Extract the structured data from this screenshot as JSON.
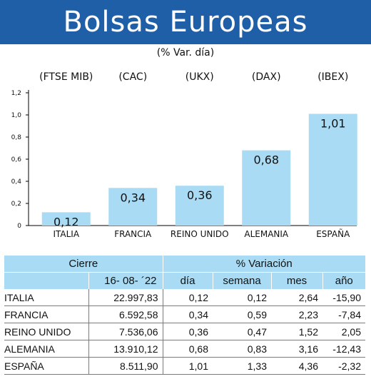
{
  "header": {
    "title": "Bolsas Europeas"
  },
  "subtitle": "(% Var. día)",
  "chart_data": {
    "type": "bar",
    "index_labels": [
      "(FTSE MIB)",
      "(CAC)",
      "(UKX)",
      "(DAX)",
      "(IBEX)"
    ],
    "categories": [
      "ITALIA",
      "FRANCIA",
      "REINO UNIDO",
      "ALEMANIA",
      "ESPAÑA"
    ],
    "values": [
      0.12,
      0.34,
      0.36,
      0.68,
      1.01
    ],
    "value_labels": [
      "0,12",
      "0,34",
      "0,36",
      "0,68",
      "1,01"
    ],
    "y_ticks": [
      "0",
      "0,2",
      "0,4",
      "0,6",
      "0,8",
      "1,0",
      "1,2"
    ],
    "y_tick_values": [
      0,
      0.2,
      0.4,
      0.6,
      0.8,
      1.0,
      1.2
    ],
    "ylim": [
      0,
      1.2
    ],
    "bar_color": "#a9dcf4",
    "grid": false
  },
  "table": {
    "header_cierre": "Cierre",
    "header_variacion": "% Variación",
    "date": "16- 08- ´22",
    "col_dia": "día",
    "col_semana": "semana",
    "col_mes": "mes",
    "col_anio": "año",
    "rows": [
      {
        "name": "ITALIA",
        "cierre": "22.997,83",
        "dia": "0,12",
        "semana": "0,12",
        "mes": "2,64",
        "anio": "-15,90"
      },
      {
        "name": "FRANCIA",
        "cierre": "6.592,58",
        "dia": "0,34",
        "semana": "0,59",
        "mes": "2,23",
        "anio": "-7,84"
      },
      {
        "name": "REINO UNIDO",
        "cierre": "7.536,06",
        "dia": "0,36",
        "semana": "0,47",
        "mes": "1,52",
        "anio": "2,05"
      },
      {
        "name": "ALEMANIA",
        "cierre": "13.910,12",
        "dia": "0,68",
        "semana": "0,83",
        "mes": "3,16",
        "anio": "-12,43"
      },
      {
        "name": "ESPAÑA",
        "cierre": "8.511,90",
        "dia": "1,01",
        "semana": "1,33",
        "mes": "4,36",
        "anio": "-2,32"
      }
    ]
  },
  "colors": {
    "header_bg": "#1f5fa7",
    "accent_light": "#a9dcf4"
  }
}
